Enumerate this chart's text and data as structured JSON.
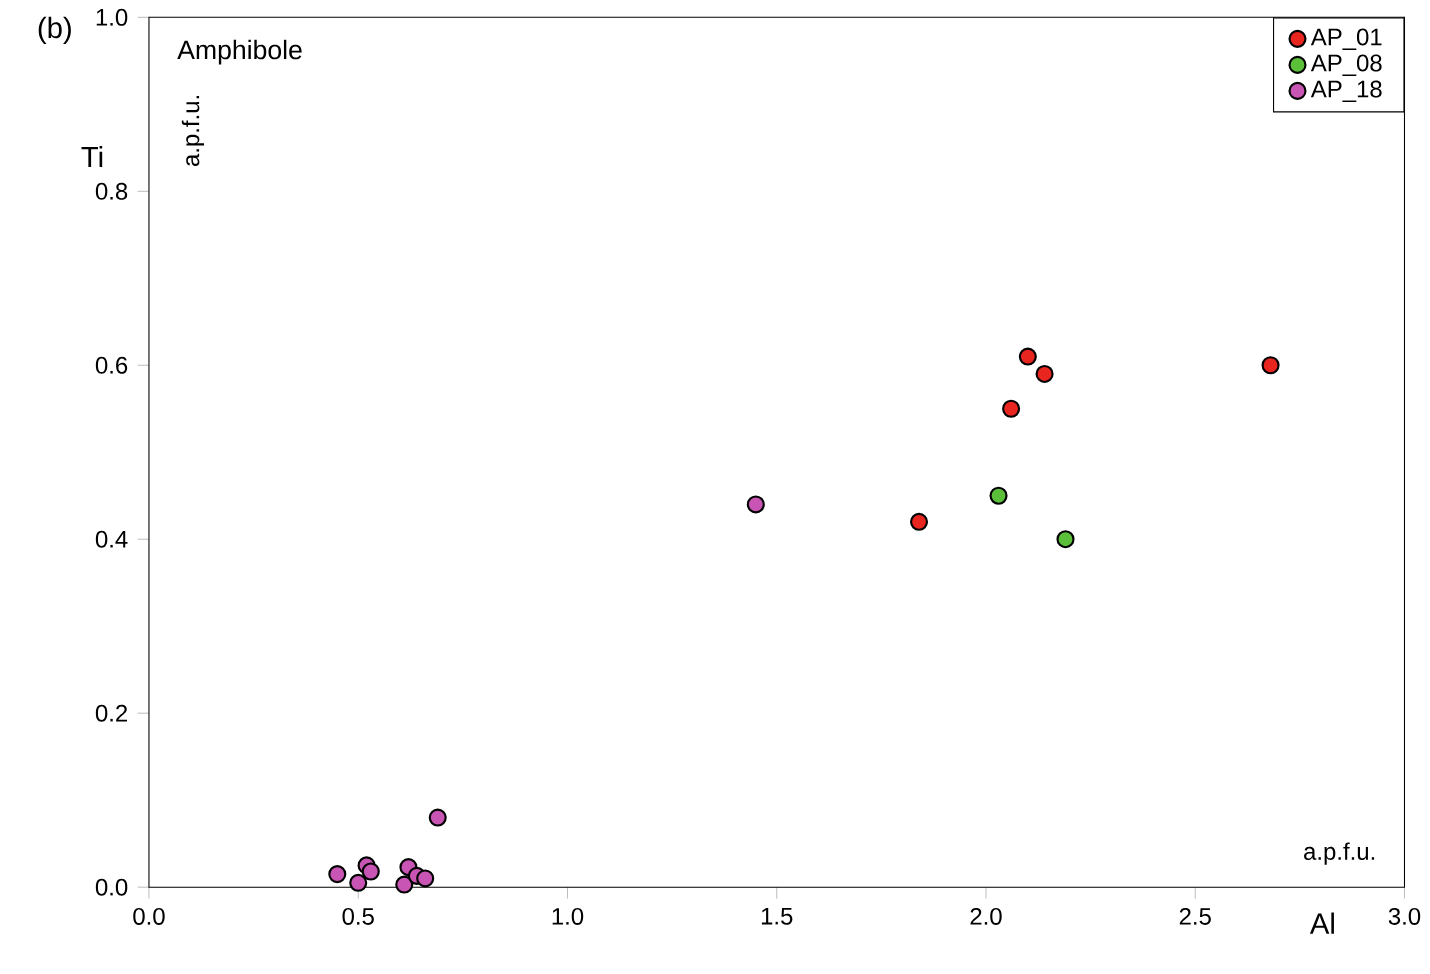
{
  "chart_data": {
    "type": "scatter",
    "xlabel": "Al",
    "ylabel": "Ti",
    "annotations": [
      "(b)",
      "Amphibole",
      "a.p.f.u.",
      "a.p.f.u."
    ],
    "xlim": [
      0,
      3
    ],
    "ylim": [
      0,
      1
    ],
    "xticks": [
      {
        "value": 0,
        "label": "0.0"
      },
      {
        "value": 0.5,
        "label": "0.5"
      },
      {
        "value": 1,
        "label": "1.0"
      },
      {
        "value": 1.5,
        "label": "1.5"
      },
      {
        "value": 2,
        "label": "2.0"
      },
      {
        "value": 2.5,
        "label": "2.5"
      },
      {
        "value": 3,
        "label": "3.0"
      }
    ],
    "yticks": [
      {
        "value": 0,
        "label": "0.0"
      },
      {
        "value": 0.2,
        "label": "0.2"
      },
      {
        "value": 0.4,
        "label": "0.4"
      },
      {
        "value": 0.6,
        "label": "0.6"
      },
      {
        "value": 0.8,
        "label": "0.8"
      },
      {
        "value": 1,
        "label": "1.0"
      }
    ],
    "marker": "circle",
    "legend": "top right",
    "grid": false,
    "series": [
      {
        "name": "AP_01",
        "color": "#e8251f",
        "x": [
          2.1,
          2.14,
          2.06,
          1.84,
          2.68
        ],
        "values": [
          0.61,
          0.59,
          0.55,
          0.42,
          0.6
        ]
      },
      {
        "name": "AP_08",
        "color": "#5cbf3a",
        "x": [
          2.03,
          2.19
        ],
        "values": [
          0.45,
          0.4
        ]
      },
      {
        "name": "AP_18",
        "color": "#c855b4",
        "x": [
          1.45,
          0.45,
          0.5,
          0.52,
          0.53,
          0.61,
          0.62,
          0.64,
          0.66,
          0.69
        ],
        "values": [
          0.44,
          0.015,
          0.005,
          0.025,
          0.018,
          0.003,
          0.023,
          0.013,
          0.01,
          0.08
        ]
      }
    ]
  }
}
